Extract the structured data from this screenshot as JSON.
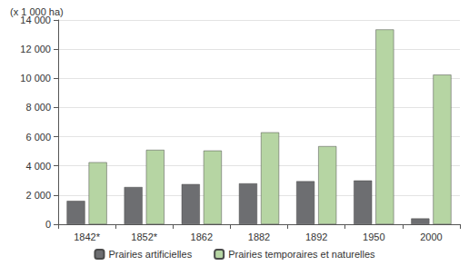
{
  "chart_data": {
    "type": "bar",
    "ylabel": "(x 1 000 ha)",
    "categories": [
      "1842*",
      "1852*",
      "1862",
      "1882",
      "1892",
      "1950",
      "2000"
    ],
    "series": [
      {
        "name": "Prairies artificielles",
        "color": "#6d6e71",
        "values": [
          1600,
          2550,
          2750,
          2800,
          2950,
          3000,
          400
        ]
      },
      {
        "name": "Prairies temporaires et naturelles",
        "color": "#b6d5a3",
        "values": [
          4250,
          5100,
          5050,
          6300,
          5350,
          13350,
          10250
        ]
      }
    ],
    "ylim": [
      0,
      14000
    ],
    "yticks": [
      0,
      {
        "value": 2000,
        "label": "2 000"
      },
      {
        "value": 4000,
        "label": "4 000"
      },
      {
        "value": 6000,
        "label": "6 000"
      },
      {
        "value": 8000,
        "label": "8 000"
      },
      {
        "value": 10000,
        "label": "10 000"
      },
      {
        "value": 12000,
        "label": "12 000"
      },
      {
        "value": 14000,
        "label": "14 000"
      }
    ],
    "grid": true,
    "legend": "bottom"
  }
}
